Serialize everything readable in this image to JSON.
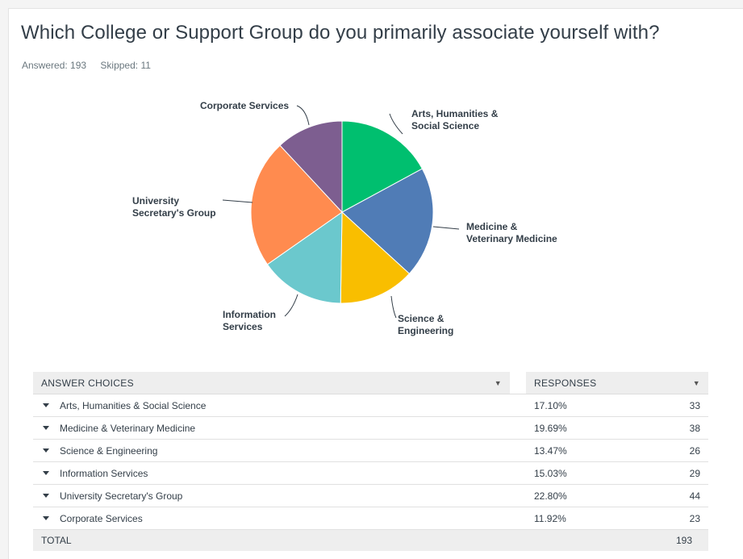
{
  "question": {
    "title": "Which College or Support Group do you primarily associate yourself with?",
    "answered_label": "Answered: 193",
    "skipped_label": "Skipped: 11"
  },
  "chart_data": {
    "type": "pie",
    "title": "",
    "categories": [
      "Arts, Humanities & Social Science",
      "Medicine & Veterinary Medicine",
      "Science & Engineering",
      "Information Services",
      "University Secretary's Group",
      "Corporate Services"
    ],
    "values": [
      17.1,
      19.69,
      13.47,
      15.03,
      22.8,
      11.92
    ],
    "colors": [
      "#00bf6f",
      "#507cb6",
      "#f9be00",
      "#6bc8cd",
      "#ff8b4f",
      "#7d5e90"
    ],
    "legend": "none",
    "slice_labels": [
      [
        "Arts, Humanities &",
        "Social Science"
      ],
      [
        "Medicine &",
        "Veterinary Medicine"
      ],
      [
        "Science &",
        "Engineering"
      ],
      [
        "Information",
        "Services"
      ],
      [
        "University",
        "Secretary's Group"
      ],
      [
        "Corporate Services"
      ]
    ]
  },
  "table": {
    "headers": {
      "choices": "ANSWER CHOICES",
      "responses": "RESPONSES"
    },
    "rows": [
      {
        "choice": "Arts, Humanities & Social Science",
        "percent": "17.10%",
        "count": "33"
      },
      {
        "choice": "Medicine & Veterinary Medicine",
        "percent": "19.69%",
        "count": "38"
      },
      {
        "choice": "Science & Engineering",
        "percent": "13.47%",
        "count": "26"
      },
      {
        "choice": "Information Services",
        "percent": "15.03%",
        "count": "29"
      },
      {
        "choice": "University Secretary's Group",
        "percent": "22.80%",
        "count": "44"
      },
      {
        "choice": "Corporate Services",
        "percent": "11.92%",
        "count": "23"
      }
    ],
    "total_label": "TOTAL",
    "total_value": "193"
  }
}
